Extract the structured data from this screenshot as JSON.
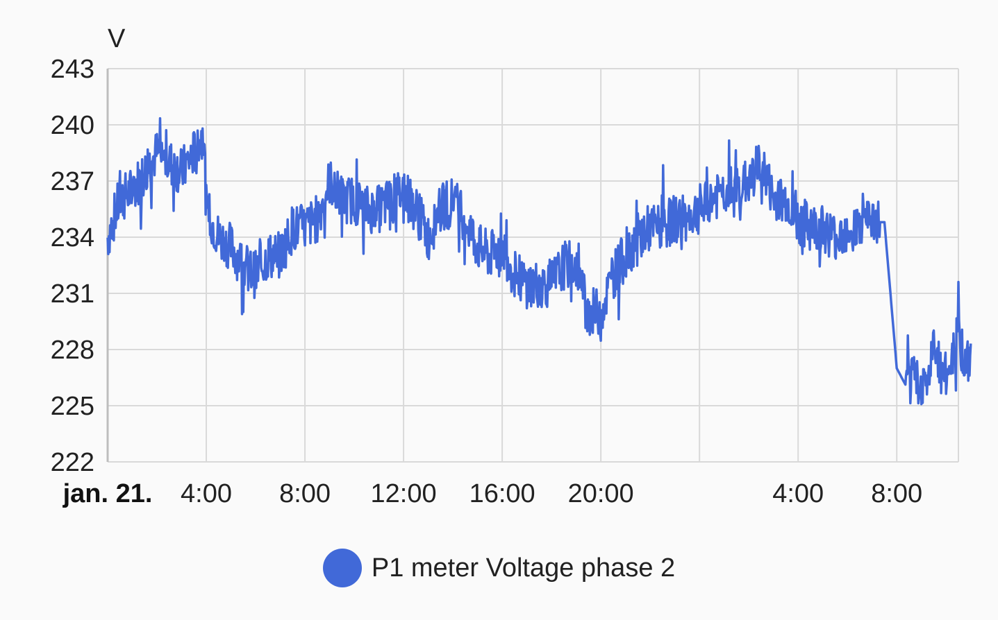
{
  "chart_data": {
    "type": "line",
    "title": "",
    "xlabel": "",
    "ylabel": "V",
    "ylim": [
      222,
      243
    ],
    "yticks": [
      "243",
      "240",
      "237",
      "234",
      "231",
      "228",
      "225",
      "222"
    ],
    "xlim": [
      "2024-01-21 00:00",
      "2024-01-22 10:30"
    ],
    "xticks": [
      {
        "label": "jan. 21.",
        "major": true
      },
      {
        "label": "4:00"
      },
      {
        "label": "8:00"
      },
      {
        "label": "12:00"
      },
      {
        "label": "16:00"
      },
      {
        "label": "20:00"
      },
      {
        "label": ""
      },
      {
        "label": "4:00"
      },
      {
        "label": "8:00"
      }
    ],
    "grid": true,
    "legend_position": "bottom",
    "series": [
      {
        "name": "P1 meter Voltage phase 2",
        "color": "#4169d8",
        "x_hours": [
          0,
          0.5,
          1,
          1.5,
          2,
          2.5,
          3,
          3.5,
          3.9,
          4.0,
          4.5,
          5,
          5.5,
          6,
          6.5,
          7,
          7.5,
          8,
          8.5,
          9,
          9.5,
          10,
          10.5,
          11,
          11.5,
          12,
          12.5,
          13,
          13.5,
          14,
          14.5,
          15,
          15.5,
          16,
          16.5,
          17,
          17.5,
          18,
          18.5,
          19,
          19.5,
          20,
          20.5,
          21,
          21.5,
          22,
          22.5,
          23,
          23.5,
          24,
          24.5,
          25,
          25.5,
          26,
          26.5,
          27,
          27.5,
          28,
          28.5,
          29,
          29.5,
          30,
          30.5,
          31,
          31.5,
          32,
          32.4,
          32.8,
          33.2,
          33.5,
          34,
          34.5,
          34.8,
          35
        ],
        "y": [
          234,
          236,
          236.5,
          237.5,
          238.5,
          238,
          237.5,
          238.5,
          239.5,
          235.5,
          234,
          233.5,
          232.5,
          232,
          233,
          233,
          234.5,
          234.5,
          235,
          237,
          236,
          236,
          235.5,
          235.5,
          236,
          236.5,
          235.5,
          234,
          235.5,
          236,
          235,
          233.5,
          233,
          233.5,
          232,
          231.5,
          231.5,
          231.5,
          232.5,
          232.5,
          230,
          230,
          232,
          233,
          234,
          234.5,
          234.5,
          235,
          235,
          235.5,
          236,
          236.5,
          236.5,
          237,
          238,
          236,
          236,
          235,
          234.5,
          234.5,
          234,
          234.5,
          234.5,
          234.8,
          234.8,
          227,
          226,
          226.5,
          226,
          228,
          226.5,
          229,
          227,
          227.5
        ]
      }
    ]
  }
}
